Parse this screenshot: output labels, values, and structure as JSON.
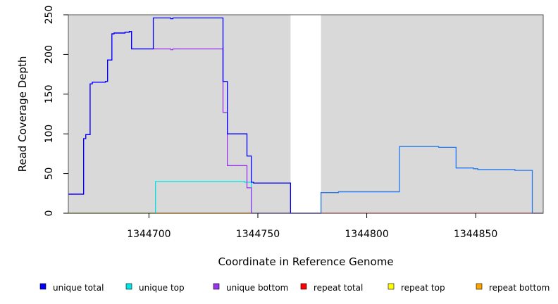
{
  "chart_data": {
    "type": "line",
    "title": "",
    "xlabel": "Coordinate in Reference Genome",
    "ylabel": "Read Coverage Depth",
    "xlim": [
      1344663,
      1344881
    ],
    "ylim": [
      0,
      250
    ],
    "x_ticks": [
      1344700,
      1344750,
      1344800,
      1344850
    ],
    "y_ticks": [
      0,
      50,
      100,
      150,
      200,
      250
    ],
    "shaded_regions": [
      [
        1344663,
        1344765
      ],
      [
        1344779,
        1344881
      ]
    ],
    "unshaded_gap": [
      1344765,
      1344779
    ],
    "legend_position": "bottom",
    "series": [
      {
        "name": "unique total",
        "color": "#0000ff",
        "steps": [
          [
            1344663,
            24
          ],
          [
            1344670,
            94
          ],
          [
            1344671,
            99
          ],
          [
            1344673,
            163
          ],
          [
            1344674,
            165
          ],
          [
            1344680,
            166
          ],
          [
            1344681,
            193
          ],
          [
            1344683,
            226
          ],
          [
            1344684,
            227
          ],
          [
            1344689,
            228
          ],
          [
            1344691,
            229
          ],
          [
            1344692,
            207
          ],
          [
            1344702,
            246
          ],
          [
            1344710,
            245
          ],
          [
            1344711,
            246
          ],
          [
            1344734,
            166
          ],
          [
            1344736,
            100
          ],
          [
            1344745,
            72
          ],
          [
            1344747,
            39
          ],
          [
            1344748,
            38
          ],
          [
            1344765,
            0
          ]
        ],
        "end": 1344779
      },
      {
        "name": "unique top",
        "color": "#00e5e5",
        "steps": [
          [
            1344663,
            0
          ],
          [
            1344703,
            40
          ],
          [
            1344744,
            39
          ],
          [
            1344747,
            0
          ]
        ],
        "end": 1344765
      },
      {
        "name": "unique bottom",
        "color": "#9933ee",
        "steps": [
          [
            1344663,
            24
          ],
          [
            1344670,
            94
          ],
          [
            1344671,
            99
          ],
          [
            1344673,
            163
          ],
          [
            1344674,
            165
          ],
          [
            1344680,
            166
          ],
          [
            1344681,
            193
          ],
          [
            1344683,
            226
          ],
          [
            1344684,
            227
          ],
          [
            1344689,
            228
          ],
          [
            1344691,
            229
          ],
          [
            1344692,
            207
          ],
          [
            1344710,
            206
          ],
          [
            1344711,
            207
          ],
          [
            1344734,
            127
          ],
          [
            1344736,
            60
          ],
          [
            1344745,
            32
          ],
          [
            1344747,
            0
          ]
        ],
        "end": 1344765
      },
      {
        "name": "repeat total",
        "color": "#ff0000",
        "steps": [
          [
            1344663,
            0
          ]
        ],
        "end": 1344881
      },
      {
        "name": "repeat top",
        "color": "#ffff00",
        "steps": [
          [
            1344663,
            0
          ]
        ],
        "end": 1344747
      },
      {
        "name": "repeat bottom",
        "color": "#ffa500",
        "steps": [
          [
            1344663,
            0
          ]
        ],
        "end": 1344747
      },
      {
        "name": "",
        "color": "#2277ee",
        "steps": [
          [
            1344765,
            0
          ],
          [
            1344779,
            26
          ],
          [
            1344787,
            27
          ],
          [
            1344815,
            84
          ],
          [
            1344833,
            83
          ],
          [
            1344841,
            57
          ],
          [
            1344849,
            56
          ],
          [
            1344851,
            55
          ],
          [
            1344868,
            54
          ],
          [
            1344876,
            0
          ]
        ],
        "end": 1344881
      }
    ]
  }
}
